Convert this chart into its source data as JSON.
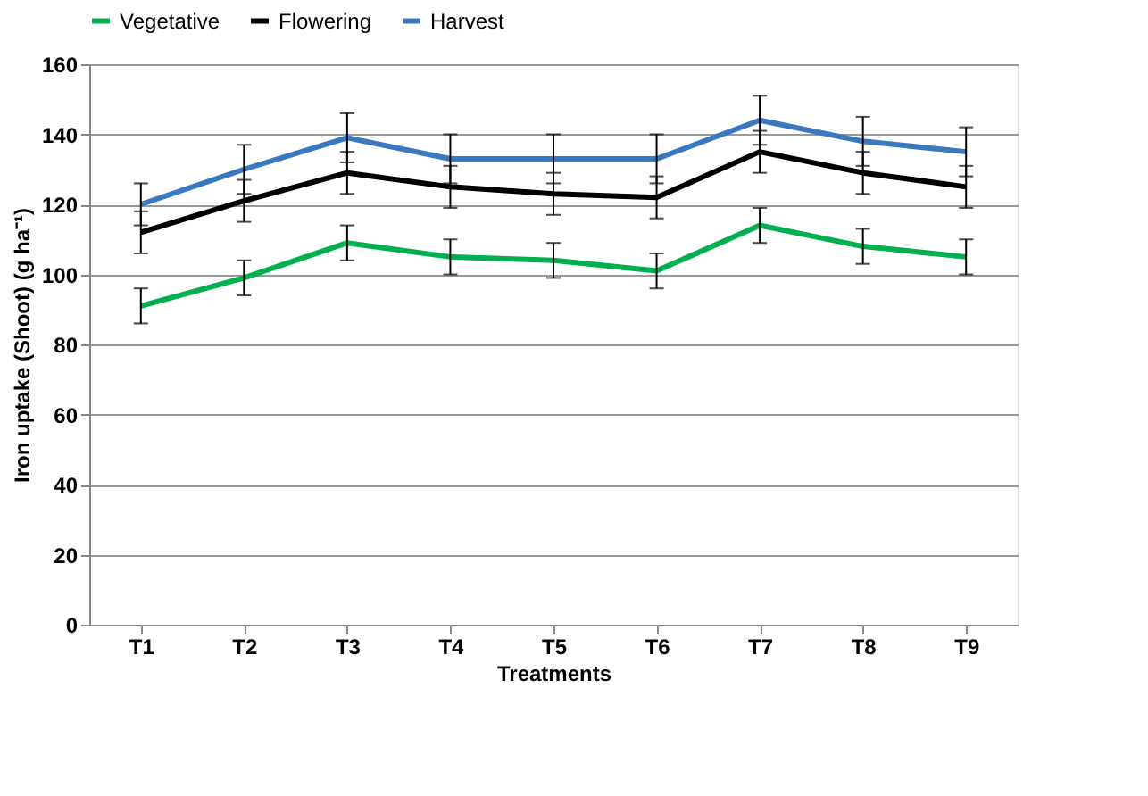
{
  "chart_data": {
    "type": "line",
    "xlabel": "Treatments",
    "ylabel": "Iron uptake (Shoot) (g ha⁻¹)",
    "categories": [
      "T1",
      "T2",
      "T3",
      "T4",
      "T5",
      "T6",
      "T7",
      "T8",
      "T9"
    ],
    "series": [
      {
        "name": "Vegetative",
        "color": "#00b050",
        "values": [
          91,
          99,
          109,
          105,
          104,
          101,
          114,
          108,
          105
        ],
        "errors": [
          5,
          5,
          5,
          5,
          5,
          5,
          5,
          5,
          5
        ]
      },
      {
        "name": "Flowering",
        "color": "#000000",
        "values": [
          112,
          121,
          129,
          125,
          123,
          122,
          135,
          129,
          125
        ],
        "errors": [
          6,
          6,
          6,
          6,
          6,
          6,
          6,
          6,
          6
        ]
      },
      {
        "name": "Harvest",
        "color": "#3a78c0",
        "values": [
          120,
          130,
          139,
          133,
          133,
          133,
          144,
          138,
          135
        ],
        "errors": [
          6,
          7,
          7,
          7,
          7,
          7,
          7,
          7,
          7
        ]
      }
    ],
    "ylim": [
      0,
      160
    ],
    "yticks": [
      0,
      20,
      40,
      60,
      80,
      100,
      120,
      140,
      160
    ],
    "grid": "y",
    "legend": "top",
    "marker": "none",
    "line_style": "solid"
  }
}
